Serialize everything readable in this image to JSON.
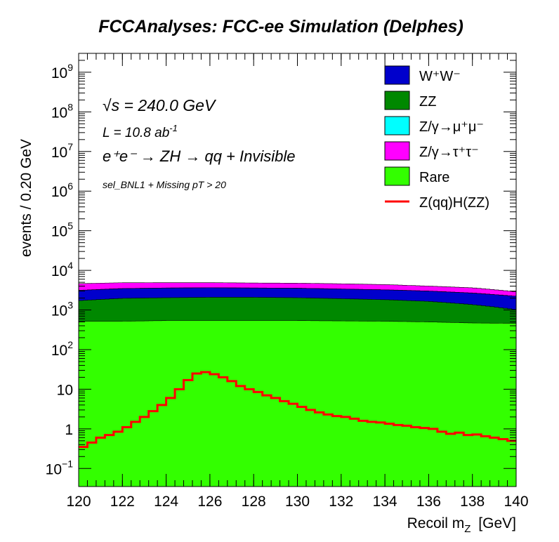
{
  "page": {
    "title": "FCCAnalyses: FCC-ee Simulation (Delphes)"
  },
  "chart_data": {
    "type": "area",
    "title": "FCCAnalyses: FCC-ee Simulation (Delphes)",
    "xlabel": "Recoil m_Z [GeV]",
    "xlabel_main": "Recoil m",
    "xlabel_sub": "Z",
    "xlabel_unit": "[GeV]",
    "ylabel": "events / 0.20 GeV",
    "xlim": [
      120,
      140
    ],
    "ylim": [
      0.035,
      3000000000
    ],
    "yscale": "log",
    "grid": false,
    "x_ticks": [
      "120",
      "122",
      "124",
      "126",
      "128",
      "130",
      "132",
      "134",
      "136",
      "138",
      "140"
    ],
    "y_ticks": [
      {
        "value": 0.1,
        "base": "10",
        "exp": "−1"
      },
      {
        "value": 1,
        "base": "1",
        "exp": ""
      },
      {
        "value": 10,
        "base": "10",
        "exp": ""
      },
      {
        "value": 100,
        "base": "10",
        "exp": "2"
      },
      {
        "value": 1000,
        "base": "10",
        "exp": "3"
      },
      {
        "value": 10000,
        "base": "10",
        "exp": "4"
      },
      {
        "value": 100000,
        "base": "10",
        "exp": "5"
      },
      {
        "value": 1000000,
        "base": "10",
        "exp": "6"
      },
      {
        "value": 10000000,
        "base": "10",
        "exp": "7"
      },
      {
        "value": 100000000,
        "base": "10",
        "exp": "8"
      },
      {
        "value": 1000000000,
        "base": "10",
        "exp": "9"
      }
    ],
    "annotations": {
      "energy": {
        "sqrt": "√s",
        "text": " = 240.0 GeV"
      },
      "lumi": {
        "text": "L = 10.8 ab",
        "sup": "-1"
      },
      "process": "e⁺e⁻  → ZH  → qq + Invisible",
      "selection": "sel_BNL1 + Missing pT > 20"
    },
    "legend_position": "top-right",
    "legend": [
      {
        "label": "W⁺W⁻",
        "color": "#0000cc",
        "kind": "fill"
      },
      {
        "label": "ZZ",
        "color": "#008800",
        "kind": "fill"
      },
      {
        "label": "Z/γ→μ⁺μ⁻",
        "color": "#00ffff",
        "kind": "fill"
      },
      {
        "label": "Z/γ→τ⁺τ⁻",
        "color": "#ff00ff",
        "kind": "fill"
      },
      {
        "label": "Rare",
        "color": "#33ff00",
        "kind": "fill"
      },
      {
        "label": "Z(qq)H(ZZ)",
        "color": "#ff0000",
        "kind": "line"
      }
    ],
    "stack_order": [
      "Rare",
      "ZZ",
      "W⁺W⁻",
      "Z/γ→μ⁺μ⁻",
      "Z/γ→τ⁺τ⁻"
    ],
    "x": [
      120,
      122,
      124,
      126,
      128,
      130,
      132,
      134,
      136,
      138,
      140
    ],
    "series": [
      {
        "name": "Rare",
        "kind": "stacked",
        "color": "#33ff00",
        "values": [
          520,
          520,
          540,
          540,
          540,
          540,
          530,
          520,
          500,
          470,
          460
        ]
      },
      {
        "name": "ZZ",
        "kind": "stacked",
        "color": "#008800",
        "values": [
          1200,
          1450,
          1500,
          1550,
          1550,
          1500,
          1400,
          1300,
          1150,
          900,
          560
        ]
      },
      {
        "name": "W⁺W⁻",
        "kind": "stacked",
        "color": "#0000cc",
        "values": [
          1400,
          1500,
          1550,
          1550,
          1500,
          1500,
          1450,
          1400,
          1350,
          1300,
          1200
        ]
      },
      {
        "name": "Z/γ→μ⁺μ⁻",
        "kind": "stacked",
        "color": "#00ffff",
        "values": [
          10,
          10,
          10,
          10,
          10,
          10,
          10,
          10,
          10,
          10,
          10
        ]
      },
      {
        "name": "Z/γ→τ⁺τ⁻",
        "kind": "stacked",
        "color": "#ff00ff",
        "values": [
          1500,
          1400,
          1300,
          1250,
          1200,
          1200,
          1200,
          1150,
          1000,
          950,
          650
        ]
      },
      {
        "name": "Z(qq)H(ZZ)",
        "kind": "line",
        "color": "#ff0000",
        "x": [
          120.0,
          120.4,
          120.8,
          121.2,
          121.6,
          122.0,
          122.4,
          122.8,
          123.2,
          123.6,
          124.0,
          124.4,
          124.8,
          125.2,
          125.6,
          126.0,
          126.4,
          126.8,
          127.2,
          127.6,
          128.0,
          128.4,
          128.8,
          129.2,
          129.6,
          130.0,
          130.4,
          130.8,
          131.2,
          131.6,
          132.0,
          132.4,
          132.8,
          133.2,
          133.6,
          134.0,
          134.4,
          134.8,
          135.2,
          135.6,
          136.0,
          136.4,
          136.8,
          137.2,
          137.6,
          138.0,
          138.4,
          138.8,
          139.2,
          139.6,
          140.0
        ],
        "values": [
          0.35,
          0.45,
          0.6,
          0.7,
          0.85,
          1.1,
          1.5,
          2.0,
          2.8,
          4.0,
          6.0,
          10,
          17,
          25,
          27,
          24,
          20,
          16,
          12,
          10,
          8.5,
          7.0,
          6.0,
          5.0,
          4.3,
          3.6,
          3.0,
          2.6,
          2.3,
          2.1,
          2.0,
          1.8,
          1.6,
          1.5,
          1.45,
          1.35,
          1.25,
          1.2,
          1.1,
          1.05,
          1.0,
          0.85,
          0.75,
          0.8,
          0.7,
          0.72,
          0.65,
          0.6,
          0.55,
          0.5,
          0.45
        ]
      }
    ]
  }
}
